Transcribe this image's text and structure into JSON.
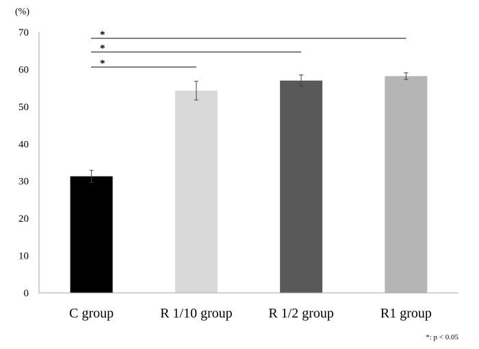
{
  "chart_data": {
    "type": "bar",
    "title": "",
    "xlabel": "",
    "ylabel": "(%)",
    "ylim": [
      0,
      70
    ],
    "yticks": [
      0,
      10,
      20,
      30,
      40,
      50,
      60,
      70
    ],
    "categories": [
      "C group",
      "R 1/10 group",
      "R 1/2 group",
      "R1 group"
    ],
    "values": [
      31.3,
      54.3,
      57.0,
      58.2
    ],
    "errors": [
      1.6,
      2.5,
      1.5,
      0.9
    ],
    "colors": [
      "#000000",
      "#d9d9d9",
      "#595959",
      "#b5b5b5"
    ],
    "significance": [
      {
        "from": 0,
        "to": 1,
        "label": "*"
      },
      {
        "from": 0,
        "to": 2,
        "label": "*"
      },
      {
        "from": 0,
        "to": 3,
        "label": "*"
      }
    ],
    "footnote": "*: p < 0.05"
  }
}
